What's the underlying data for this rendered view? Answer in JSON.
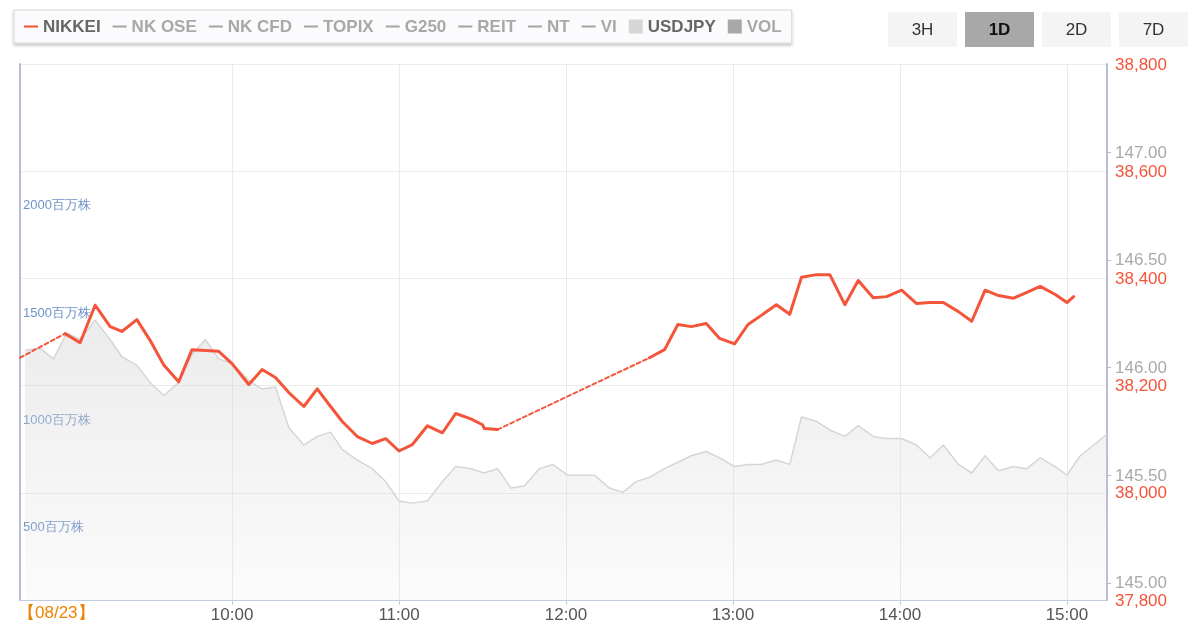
{
  "chart_data": {
    "type": "line",
    "xlim": [
      8.73,
      15.24
    ],
    "xticks": [
      {
        "value": 10,
        "label": "10:00"
      },
      {
        "value": 11,
        "label": "11:00"
      },
      {
        "value": 12,
        "label": "12:00"
      },
      {
        "value": 13,
        "label": "13:00"
      },
      {
        "value": 14,
        "label": "14:00"
      },
      {
        "value": 15,
        "label": "15:00"
      }
    ],
    "ylim": [
      37800,
      38800
    ],
    "yticks": [
      {
        "value": 37800,
        "label": "37,800"
      },
      {
        "value": 38000,
        "label": "38,000"
      },
      {
        "value": 38200,
        "label": "38,200"
      },
      {
        "value": 38400,
        "label": "38,400"
      },
      {
        "value": 38600,
        "label": "38,600"
      },
      {
        "value": 38800,
        "label": "38,800"
      }
    ],
    "y2lim": [
      144.92,
      147.41
    ],
    "y2ticks": [
      {
        "value": 145,
        "label": "145.00"
      },
      {
        "value": 145.5,
        "label": "145.50"
      },
      {
        "value": 146,
        "label": "146.00"
      },
      {
        "value": 146.5,
        "label": "146.50"
      },
      {
        "value": 147,
        "label": "147.00"
      }
    ],
    "y3lim": [
      160,
      2655
    ],
    "y3ticks": [
      {
        "value": 500,
        "label": "500百万株"
      },
      {
        "value": 1000,
        "label": "1000百万株"
      },
      {
        "value": 1500,
        "label": "1500百万株"
      },
      {
        "value": 2000,
        "label": "2000百万株"
      }
    ],
    "grid": true,
    "legend": "top left",
    "annotations": [
      "【08/23】",
      "3H",
      "1D",
      "2D",
      "7D"
    ],
    "series": [
      {
        "name": "NIKKEI",
        "color": "#f4553a",
        "x": [
          9.0,
          9.09,
          9.18,
          9.27,
          9.34,
          9.43,
          9.51,
          9.59,
          9.68,
          9.76,
          9.92,
          10.0,
          10.1,
          10.18,
          10.26,
          10.34,
          10.43,
          10.51,
          10.59,
          10.66,
          10.75,
          10.84,
          10.92,
          11.0,
          11.08,
          11.17,
          11.26,
          11.34,
          11.43,
          11.5,
          11.51,
          11.59,
          12.0,
          12.5,
          12.59,
          12.67,
          12.75,
          12.84,
          12.92,
          13.01,
          13.09,
          13.17,
          13.26,
          13.34,
          13.41,
          13.5,
          13.58,
          13.67,
          13.75,
          13.84,
          13.92,
          14.01,
          14.1,
          14.18,
          14.26,
          14.35,
          14.43,
          14.51,
          14.59,
          14.68,
          14.76,
          14.84,
          14.93,
          15.0,
          15.04
        ],
        "values": [
          38297,
          38280,
          38350,
          38310,
          38301,
          38323,
          38284,
          38239,
          38207,
          38267,
          38264,
          38241,
          38202,
          38230,
          38215,
          38187,
          38161,
          38194,
          38161,
          38133,
          38105,
          38092,
          38101,
          38078,
          38090,
          38125,
          38112,
          38148,
          38138,
          38127,
          38120,
          38118,
          null,
          38252,
          38267,
          38314,
          38310,
          38316,
          38288,
          38278,
          38314,
          38331,
          38351,
          38333,
          38402,
          38407,
          38407,
          38351,
          38396,
          38364,
          38366,
          38378,
          38353,
          38355,
          38355,
          38338,
          38320,
          38378,
          38368,
          38363,
          38374,
          38385,
          38370,
          38355,
          38366
        ]
      },
      {
        "name": "NK OSE",
        "color": "#a8a8a8"
      },
      {
        "name": "NK CFD",
        "color": "#a8a8a8"
      },
      {
        "name": "TOPIX",
        "color": "#a8a8a8"
      },
      {
        "name": "G250",
        "color": "#a8a8a8"
      },
      {
        "name": "REIT",
        "color": "#a8a8a8"
      },
      {
        "name": "NT",
        "color": "#a8a8a8",
        "line_style": "dashed"
      },
      {
        "name": "VI",
        "color": "#a8a8a8",
        "line_style": "dotted"
      },
      {
        "name": "USDJPY",
        "type": "area",
        "axis": "y2",
        "color": "#d6d6d6",
        "x": [
          8.76,
          8.85,
          8.93,
          9.01,
          9.09,
          9.18,
          9.27,
          9.34,
          9.43,
          9.51,
          9.59,
          9.68,
          9.76,
          9.84,
          9.92,
          10.0,
          10.1,
          10.18,
          10.26,
          10.34,
          10.43,
          10.51,
          10.59,
          10.66,
          10.75,
          10.84,
          10.92,
          11.0,
          11.08,
          11.17,
          11.26,
          11.34,
          11.43,
          11.51,
          11.59,
          11.67,
          11.75,
          11.84,
          11.92,
          12.01,
          12.09,
          12.17,
          12.26,
          12.34,
          12.42,
          12.5,
          12.59,
          12.67,
          12.75,
          12.84,
          12.92,
          13.01,
          13.09,
          13.17,
          13.26,
          13.34,
          13.41,
          13.5,
          13.58,
          13.67,
          13.75,
          13.84,
          13.92,
          14.01,
          14.1,
          14.18,
          14.26,
          14.35,
          14.43,
          14.51,
          14.59,
          14.68,
          14.76,
          14.84,
          14.93,
          15.0,
          15.08,
          15.16,
          15.24
        ],
        "values": [
          146.08,
          146.09,
          146.04,
          146.16,
          146.13,
          146.22,
          146.13,
          146.05,
          146.01,
          145.93,
          145.87,
          145.93,
          146.06,
          146.13,
          146.04,
          146.02,
          145.94,
          145.9,
          145.91,
          145.72,
          145.64,
          145.68,
          145.7,
          145.62,
          145.57,
          145.53,
          145.47,
          145.38,
          145.37,
          145.38,
          145.47,
          145.54,
          145.53,
          145.51,
          145.53,
          145.44,
          145.45,
          145.53,
          145.55,
          145.5,
          145.5,
          145.5,
          145.44,
          145.42,
          145.47,
          145.49,
          145.53,
          145.56,
          145.59,
          145.61,
          145.58,
          145.54,
          145.55,
          145.55,
          145.57,
          145.55,
          145.77,
          145.75,
          145.71,
          145.68,
          145.73,
          145.68,
          145.67,
          145.67,
          145.64,
          145.58,
          145.64,
          145.55,
          145.51,
          145.59,
          145.52,
          145.54,
          145.53,
          145.58,
          145.54,
          145.5,
          145.59,
          145.64,
          145.69
        ]
      },
      {
        "name": "VOL",
        "type": "bar",
        "axis": "y3",
        "color": "#a8a8a8"
      },
      {
        "color": "#f4553a",
        "line_style": "dashed",
        "x": [
          8.73,
          9.0
        ],
        "values": [
          38252,
          38297
        ]
      },
      {
        "color": "#f25a40",
        "line_style": "dashed",
        "x": [
          11.59,
          12.5
        ],
        "values": [
          38118,
          38252
        ]
      }
    ]
  }
}
